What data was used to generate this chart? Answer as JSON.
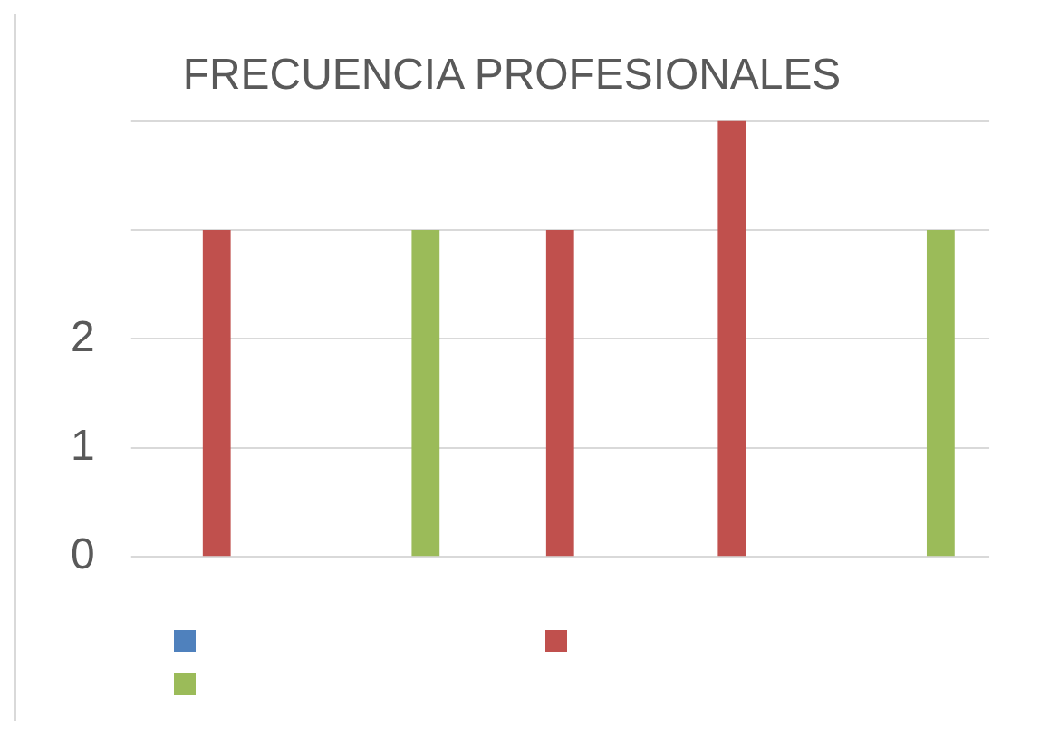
{
  "chart_data": {
    "type": "bar",
    "title": "FRECUENCIA PROFESIONALES",
    "categories": [
      null,
      null,
      null,
      null,
      null
    ],
    "series": [
      {
        "color": "#4f81bd",
        "values": [
          null,
          null,
          null,
          null,
          null
        ]
      },
      {
        "color": "#c0504d",
        "values": [
          3,
          null,
          3,
          4,
          null
        ]
      },
      {
        "color": "#9bbb59",
        "values": [
          null,
          3,
          null,
          null,
          3
        ]
      }
    ],
    "ylim": [
      0,
      4
    ],
    "yticks": [
      0,
      1,
      2,
      {
        "value": 3,
        "label": null
      },
      {
        "value": 4,
        "label": null
      }
    ],
    "grid": "y"
  }
}
